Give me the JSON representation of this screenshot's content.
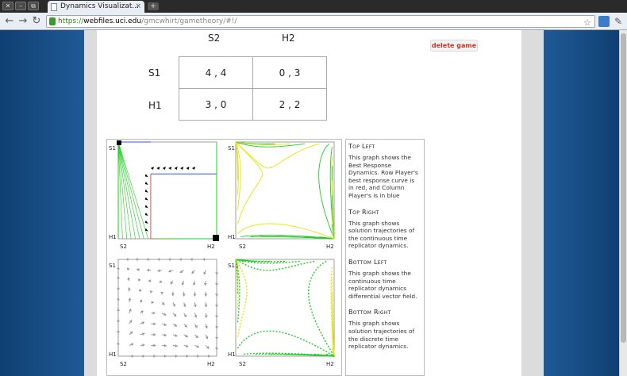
{
  "browser": {
    "window_buttons": [
      "✕",
      "–",
      "⧉"
    ],
    "tab_title": "Dynamics Visualizat...",
    "tab_close": "×",
    "new_tab": "+",
    "url_scheme": "https://",
    "url_host": "webfiles.uci.edu",
    "url_path": "/gmcwhirt/gametheory/#!/"
  },
  "game": {
    "columns": [
      "S2",
      "H2"
    ],
    "rows": [
      {
        "label": "S1",
        "cells": [
          "4 , 4",
          "0 , 3"
        ]
      },
      {
        "label": "H1",
        "cells": [
          "3 , 0",
          "2 , 2"
        ]
      }
    ],
    "delete_label": "delete game"
  },
  "graphs": {
    "top_left": {
      "tl": "S1",
      "bl": "H1",
      "bottom_left": "S2",
      "bottom_right": "H2"
    },
    "top_right": {
      "tl": "S1",
      "bl": "H1",
      "bottom_left": "S2",
      "bottom_right": "H2"
    },
    "bottom_left": {
      "tl": "S1",
      "bl": "H1",
      "bottom_left": "S2",
      "bottom_right": "H2"
    },
    "bottom_right": {
      "tl": "S1",
      "bl": "H1",
      "bottom_left": "S2",
      "bottom_right": "H2"
    }
  },
  "descriptions": [
    {
      "title": "Top Left",
      "text": "This graph shows the Best Response Dynamics. Row Player's best response curve is in red, and Column Player's is in blue"
    },
    {
      "title": "Top Right",
      "text": "This graph shows solution trajectories of the continuous time replicator dynamics."
    },
    {
      "title": "Bottom Left",
      "text": "This graph shows the continuous time replicator dynamics differential vector field."
    },
    {
      "title": "Bottom Right",
      "text": "This graph shows solution trajectories of the discrete time replicator dynamics."
    }
  ],
  "colors": {
    "green": "#22cc22",
    "yellow": "#e6e600",
    "red": "#e05050",
    "blue": "#3355cc",
    "gray": "#999999",
    "delete": "#c0392b"
  }
}
